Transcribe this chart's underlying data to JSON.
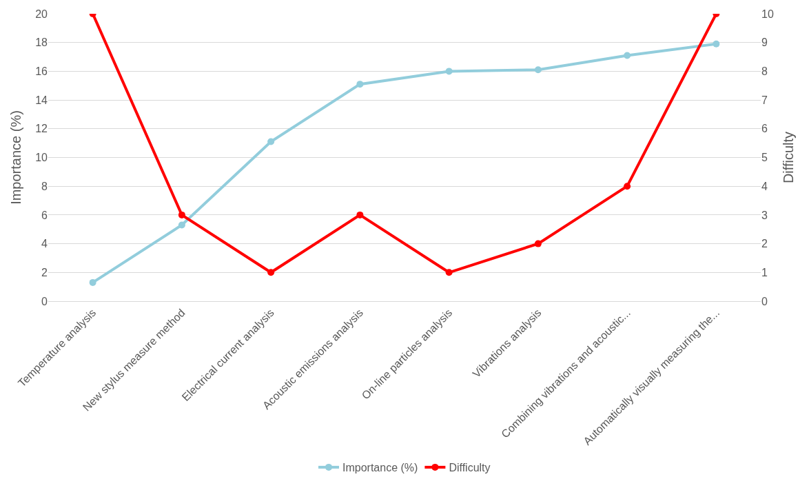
{
  "chart_data": {
    "type": "line",
    "categories": [
      "Temperature analysis",
      "New stylus measure method",
      "Electrical current analysis",
      "Acoustic emissions analysis",
      "On-line particles analysis",
      "Vibrations analysis",
      "Combining vibrations and acoustic...",
      "Automatically visually measuring the..."
    ],
    "series": [
      {
        "name": "Importance (%)",
        "color": "#92cddc",
        "values": [
          1.3,
          5.3,
          11.1,
          15.1,
          16.0,
          16.1,
          17.1,
          17.9
        ]
      },
      {
        "name": "Difficulty",
        "color": "#ff0000",
        "axis": "y2",
        "values": [
          10,
          3,
          1,
          3,
          1,
          2,
          4,
          10
        ]
      }
    ],
    "ylabel": "Importance (%)",
    "y2label": "Difficulty",
    "ylim": [
      0,
      20
    ],
    "yticks": [
      0,
      2,
      4,
      6,
      8,
      10,
      12,
      14,
      16,
      18,
      20
    ],
    "y2lim": [
      0,
      10
    ],
    "y2ticks": [
      0,
      1,
      2,
      3,
      4,
      5,
      6,
      7,
      8,
      9,
      10
    ],
    "grid": "y",
    "legend": "bottom",
    "marker": "circle",
    "line_style": "solid"
  }
}
